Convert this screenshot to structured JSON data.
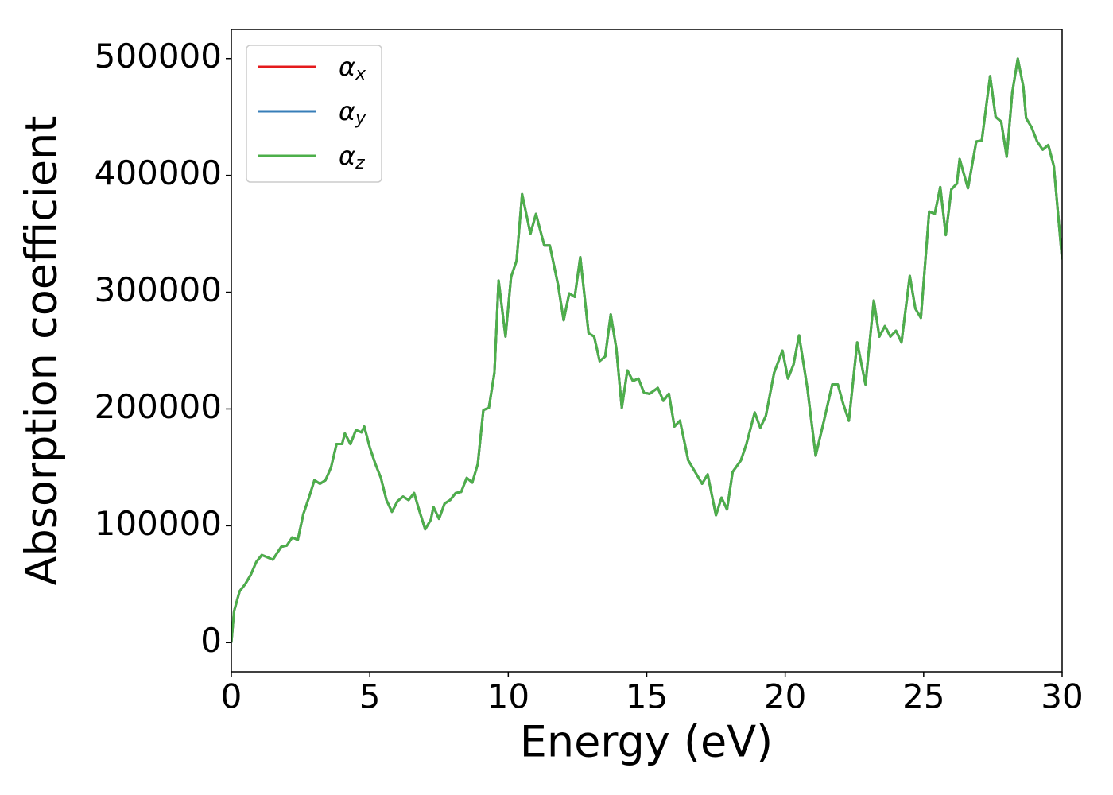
{
  "chart_data": {
    "type": "line",
    "xlabel": "Energy (eV)",
    "ylabel": "Absorption coefficient",
    "x": [
      0,
      0.1,
      0.3,
      0.5,
      0.7,
      0.9,
      1.1,
      1.3,
      1.5,
      1.8,
      2.0,
      2.2,
      2.4,
      2.6,
      2.8,
      3.0,
      3.2,
      3.4,
      3.6,
      3.8,
      4.0,
      4.1,
      4.3,
      4.5,
      4.7,
      4.8,
      5.0,
      5.2,
      5.4,
      5.6,
      5.8,
      6.0,
      6.2,
      6.4,
      6.6,
      6.8,
      7.0,
      7.2,
      7.3,
      7.5,
      7.7,
      7.9,
      8.1,
      8.3,
      8.5,
      8.7,
      8.9,
      9.1,
      9.3,
      9.5,
      9.65,
      9.9,
      10.1,
      10.3,
      10.5,
      10.8,
      11.0,
      11.3,
      11.5,
      11.8,
      12.0,
      12.2,
      12.4,
      12.6,
      12.9,
      13.1,
      13.3,
      13.5,
      13.7,
      13.9,
      14.1,
      14.3,
      14.5,
      14.7,
      14.9,
      15.1,
      15.4,
      15.6,
      15.8,
      16.0,
      16.2,
      16.5,
      16.8,
      17.0,
      17.2,
      17.5,
      17.7,
      17.9,
      18.1,
      18.4,
      18.6,
      18.9,
      19.1,
      19.3,
      19.6,
      19.9,
      20.1,
      20.3,
      20.5,
      20.8,
      21.1,
      21.4,
      21.7,
      21.9,
      22.1,
      22.3,
      22.6,
      22.9,
      23.2,
      23.4,
      23.6,
      23.8,
      24.0,
      24.2,
      24.5,
      24.7,
      24.9,
      25.2,
      25.4,
      25.6,
      25.8,
      26.0,
      26.2,
      26.3,
      26.6,
      26.9,
      27.1,
      27.4,
      27.6,
      27.8,
      28.0,
      28.2,
      28.4,
      28.6,
      28.7,
      28.9,
      29.1,
      29.3,
      29.5,
      29.7,
      30.0
    ],
    "series": [
      {
        "name": "αx",
        "color": "#e41a1c",
        "values": [
          0,
          27000,
          44000,
          50000,
          58000,
          69000,
          75000,
          73000,
          71000,
          82000,
          83000,
          90000,
          88000,
          110000,
          124000,
          139000,
          136000,
          139000,
          150000,
          170000,
          170000,
          179000,
          170000,
          182000,
          180000,
          185000,
          167000,
          153000,
          141000,
          122000,
          112000,
          121000,
          125000,
          122000,
          128000,
          112000,
          97000,
          105000,
          116000,
          106000,
          119000,
          122000,
          128000,
          129000,
          141000,
          137000,
          153000,
          199000,
          201000,
          231000,
          310000,
          262000,
          313000,
          327000,
          384000,
          350000,
          367000,
          340000,
          340000,
          306000,
          276000,
          299000,
          296000,
          330000,
          265000,
          262000,
          241000,
          245000,
          281000,
          252000,
          201000,
          233000,
          224000,
          226000,
          214000,
          213000,
          218000,
          207000,
          213000,
          185000,
          190000,
          156000,
          144000,
          136000,
          144000,
          109000,
          124000,
          114000,
          146000,
          156000,
          170000,
          197000,
          184000,
          194000,
          231000,
          250000,
          226000,
          238000,
          263000,
          218000,
          160000,
          190000,
          221000,
          221000,
          204000,
          190000,
          257000,
          221000,
          293000,
          262000,
          271000,
          262000,
          267000,
          257000,
          314000,
          286000,
          278000,
          369000,
          367000,
          390000,
          349000,
          388000,
          393000,
          414000,
          389000,
          429000,
          430000,
          485000,
          450000,
          446000,
          416000,
          471000,
          500000,
          476000,
          449000,
          441000,
          429000,
          422000,
          426000,
          408000,
          328000
        ]
      },
      {
        "name": "αy",
        "color": "#377eb8",
        "values": [
          0,
          27000,
          44000,
          50000,
          58000,
          69000,
          75000,
          73000,
          71000,
          82000,
          83000,
          90000,
          88000,
          110000,
          124000,
          139000,
          136000,
          139000,
          150000,
          170000,
          170000,
          179000,
          170000,
          182000,
          180000,
          185000,
          167000,
          153000,
          141000,
          122000,
          112000,
          121000,
          125000,
          122000,
          128000,
          112000,
          97000,
          105000,
          116000,
          106000,
          119000,
          122000,
          128000,
          129000,
          141000,
          137000,
          153000,
          199000,
          201000,
          231000,
          310000,
          262000,
          313000,
          327000,
          384000,
          350000,
          367000,
          340000,
          340000,
          306000,
          276000,
          299000,
          296000,
          330000,
          265000,
          262000,
          241000,
          245000,
          281000,
          252000,
          201000,
          233000,
          224000,
          226000,
          214000,
          213000,
          218000,
          207000,
          213000,
          185000,
          190000,
          156000,
          144000,
          136000,
          144000,
          109000,
          124000,
          114000,
          146000,
          156000,
          170000,
          197000,
          184000,
          194000,
          231000,
          250000,
          226000,
          238000,
          263000,
          218000,
          160000,
          190000,
          221000,
          221000,
          204000,
          190000,
          257000,
          221000,
          293000,
          262000,
          271000,
          262000,
          267000,
          257000,
          314000,
          286000,
          278000,
          369000,
          367000,
          390000,
          349000,
          388000,
          393000,
          414000,
          389000,
          429000,
          430000,
          485000,
          450000,
          446000,
          416000,
          471000,
          500000,
          476000,
          449000,
          441000,
          429000,
          422000,
          426000,
          408000,
          328000
        ]
      },
      {
        "name": "αz",
        "color": "#4daf4a",
        "values": [
          0,
          27000,
          44000,
          50000,
          58000,
          69000,
          75000,
          73000,
          71000,
          82000,
          83000,
          90000,
          88000,
          110000,
          124000,
          139000,
          136000,
          139000,
          150000,
          170000,
          170000,
          179000,
          170000,
          182000,
          180000,
          185000,
          167000,
          153000,
          141000,
          122000,
          112000,
          121000,
          125000,
          122000,
          128000,
          112000,
          97000,
          105000,
          116000,
          106000,
          119000,
          122000,
          128000,
          129000,
          141000,
          137000,
          153000,
          199000,
          201000,
          231000,
          310000,
          262000,
          313000,
          327000,
          384000,
          350000,
          367000,
          340000,
          340000,
          306000,
          276000,
          299000,
          296000,
          330000,
          265000,
          262000,
          241000,
          245000,
          281000,
          252000,
          201000,
          233000,
          224000,
          226000,
          214000,
          213000,
          218000,
          207000,
          213000,
          185000,
          190000,
          156000,
          144000,
          136000,
          144000,
          109000,
          124000,
          114000,
          146000,
          156000,
          170000,
          197000,
          184000,
          194000,
          231000,
          250000,
          226000,
          238000,
          263000,
          218000,
          160000,
          190000,
          221000,
          221000,
          204000,
          190000,
          257000,
          221000,
          293000,
          262000,
          271000,
          262000,
          267000,
          257000,
          314000,
          286000,
          278000,
          369000,
          367000,
          390000,
          349000,
          388000,
          393000,
          414000,
          389000,
          429000,
          430000,
          485000,
          450000,
          446000,
          416000,
          471000,
          500000,
          476000,
          449000,
          441000,
          429000,
          422000,
          426000,
          408000,
          328000
        ]
      }
    ],
    "xlim": [
      0,
      30
    ],
    "xticks": [
      0,
      5,
      10,
      15,
      20,
      25,
      30
    ],
    "ylim": [
      -25000,
      525000
    ],
    "yticks": [
      0,
      100000,
      200000,
      300000,
      400000,
      500000
    ],
    "grid": false,
    "legend": "upper left"
  }
}
